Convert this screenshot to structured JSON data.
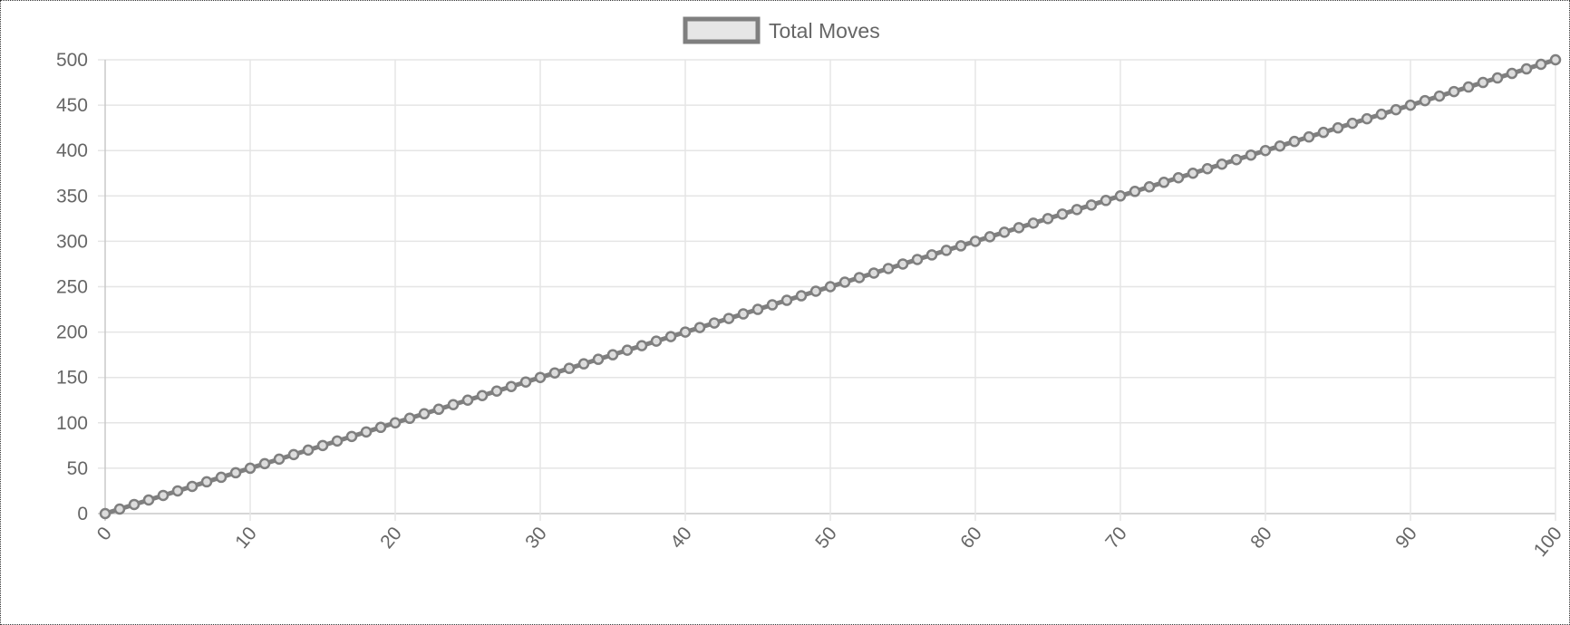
{
  "chart_data": {
    "type": "line",
    "legend": {
      "label": "Total Moves",
      "placement": "top-center"
    },
    "series": [
      {
        "name": "Total Moves",
        "x_start": 0,
        "x_end": 100,
        "x_step": 1,
        "y_per_x": 5
      }
    ],
    "xlim": [
      0,
      100
    ],
    "ylim": [
      0,
      500
    ],
    "x_ticks": [
      "0",
      "10",
      "20",
      "30",
      "40",
      "50",
      "60",
      "70",
      "80",
      "90",
      "100"
    ],
    "y_ticks": [
      "0",
      "50",
      "100",
      "150",
      "200",
      "250",
      "300",
      "350",
      "400",
      "450",
      "500"
    ],
    "grid": true,
    "colors": {
      "line": "#7f7f7f",
      "point_fill": "#dddddd",
      "grid": "#e5e5e5",
      "axis": "#c8c8c8",
      "text": "#666666"
    }
  }
}
